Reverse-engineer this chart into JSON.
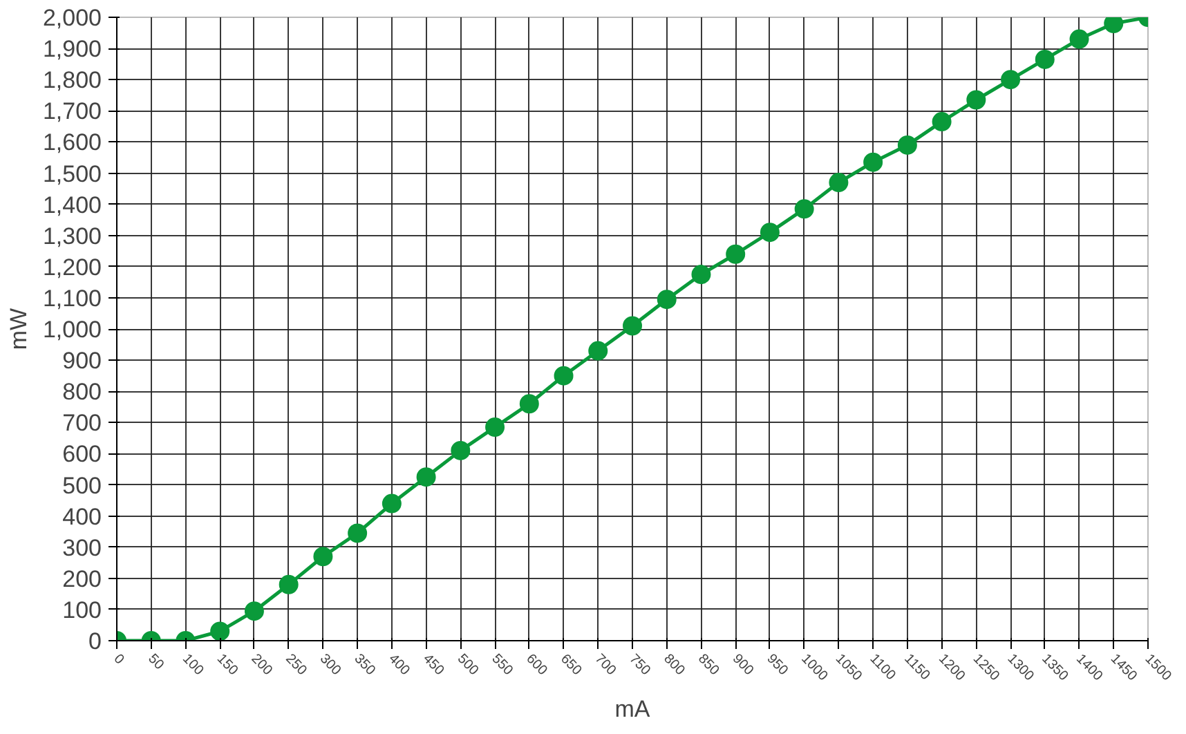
{
  "chart_data": {
    "type": "line",
    "xlabel": "mA",
    "ylabel": "mW",
    "x": [
      0,
      50,
      100,
      150,
      200,
      250,
      300,
      350,
      400,
      450,
      500,
      550,
      600,
      650,
      700,
      750,
      800,
      850,
      900,
      950,
      1000,
      1050,
      1100,
      1150,
      1200,
      1250,
      1300,
      1350,
      1400,
      1450,
      1500
    ],
    "series": [
      {
        "color": "#0a9a3a",
        "values": [
          0,
          0,
          0,
          30,
          95,
          180,
          270,
          345,
          440,
          525,
          610,
          685,
          760,
          850,
          930,
          1010,
          1095,
          1175,
          1240,
          1310,
          1385,
          1470,
          1535,
          1590,
          1665,
          1735,
          1800,
          1865,
          1930,
          1980,
          2000
        ]
      }
    ],
    "xlim": [
      0,
      1500
    ],
    "xticks": [
      0,
      50,
      100,
      150,
      200,
      250,
      300,
      350,
      400,
      450,
      500,
      550,
      600,
      650,
      700,
      750,
      800,
      850,
      900,
      950,
      1000,
      1050,
      1100,
      1150,
      1200,
      1250,
      1300,
      1350,
      1400,
      1450,
      1500
    ],
    "ylim": [
      0,
      2000
    ],
    "yticks": [
      0,
      100,
      200,
      300,
      400,
      500,
      600,
      700,
      800,
      900,
      {
        "value": 1000,
        "label": "1,000"
      },
      {
        "value": 1100,
        "label": "1,100"
      },
      {
        "value": 1200,
        "label": "1,200"
      },
      {
        "value": 1300,
        "label": "1,300"
      },
      {
        "value": 1400,
        "label": "1,400"
      },
      {
        "value": 1500,
        "label": "1,500"
      },
      {
        "value": 1600,
        "label": "1,600"
      },
      {
        "value": 1700,
        "label": "1,700"
      },
      {
        "value": 1800,
        "label": "1,800"
      },
      {
        "value": 1900,
        "label": "1,900"
      },
      {
        "value": 2000,
        "label": "2,000"
      }
    ],
    "grid": true,
    "marker": "circle",
    "line_style": "solid"
  }
}
